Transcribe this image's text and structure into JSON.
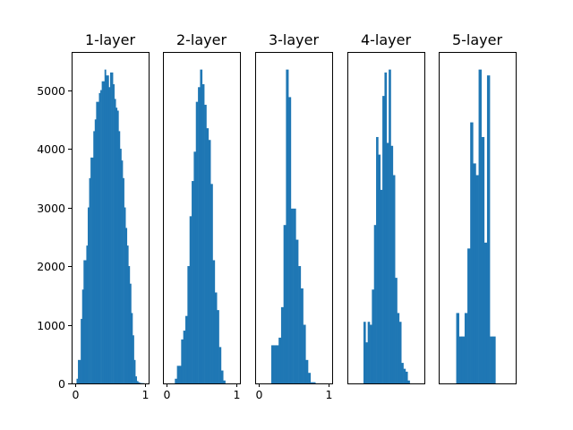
{
  "chart_data": [
    {
      "type": "bar",
      "title": "1-layer",
      "xlabel": "",
      "ylabel": "",
      "xlim": [
        -0.05,
        1.05
      ],
      "ylim": [
        0,
        5650
      ],
      "xticks": [
        "0",
        "1"
      ],
      "yticks": [
        "0",
        "1000",
        "2000",
        "3000",
        "4000",
        "5000"
      ],
      "color": "#1f77b4",
      "grid": false,
      "bins": [
        [
          0.02,
          0.04
        ],
        [
          0.04,
          0.06
        ],
        [
          0.06,
          0.08
        ],
        [
          0.08,
          0.1
        ],
        [
          0.1,
          0.12
        ],
        [
          0.12,
          0.14
        ],
        [
          0.14,
          0.16
        ],
        [
          0.16,
          0.18
        ],
        [
          0.18,
          0.2
        ],
        [
          0.2,
          0.22
        ],
        [
          0.22,
          0.24
        ],
        [
          0.24,
          0.26
        ],
        [
          0.26,
          0.28
        ],
        [
          0.28,
          0.3
        ],
        [
          0.3,
          0.32
        ],
        [
          0.32,
          0.34
        ],
        [
          0.34,
          0.36
        ],
        [
          0.36,
          0.38
        ],
        [
          0.38,
          0.4
        ],
        [
          0.4,
          0.42
        ],
        [
          0.42,
          0.44
        ],
        [
          0.44,
          0.46
        ],
        [
          0.46,
          0.48
        ],
        [
          0.48,
          0.5
        ],
        [
          0.5,
          0.52
        ],
        [
          0.52,
          0.54
        ],
        [
          0.54,
          0.56
        ],
        [
          0.56,
          0.58
        ],
        [
          0.58,
          0.6
        ],
        [
          0.6,
          0.62
        ],
        [
          0.62,
          0.64
        ],
        [
          0.64,
          0.66
        ],
        [
          0.66,
          0.68
        ],
        [
          0.68,
          0.7
        ],
        [
          0.7,
          0.72
        ],
        [
          0.72,
          0.74
        ],
        [
          0.74,
          0.76
        ],
        [
          0.76,
          0.78
        ],
        [
          0.78,
          0.8
        ],
        [
          0.8,
          0.82
        ],
        [
          0.82,
          0.84
        ],
        [
          0.84,
          0.86
        ],
        [
          0.86,
          0.88
        ],
        [
          0.88,
          0.9
        ],
        [
          0.9,
          0.92
        ],
        [
          0.92,
          0.94
        ],
        [
          0.94,
          0.96
        ],
        [
          0.96,
          0.98
        ]
      ],
      "counts": [
        80,
        400,
        400,
        1100,
        1600,
        2100,
        2100,
        2350,
        3000,
        3500,
        3850,
        3850,
        4300,
        4500,
        4800,
        4800,
        4950,
        5000,
        5150,
        5150,
        5350,
        5250,
        5250,
        5050,
        5300,
        5300,
        5100,
        4850,
        4700,
        4650,
        4300,
        4000,
        3800,
        3500,
        3000,
        2650,
        2350,
        2000,
        1700,
        1200,
        820,
        400,
        120,
        40,
        20,
        10,
        5,
        5
      ]
    },
    {
      "type": "bar",
      "title": "2-layer",
      "xlabel": "",
      "ylabel": "",
      "xlim": [
        -0.05,
        1.05
      ],
      "ylim": [
        0,
        5650
      ],
      "xticks": [
        "0",
        "1"
      ],
      "yticks": [],
      "color": "#1f77b4",
      "grid": false,
      "bins": [
        [
          0.12,
          0.15
        ],
        [
          0.15,
          0.18
        ],
        [
          0.18,
          0.21
        ],
        [
          0.21,
          0.24
        ],
        [
          0.24,
          0.27
        ],
        [
          0.27,
          0.3
        ],
        [
          0.3,
          0.33
        ],
        [
          0.33,
          0.36
        ],
        [
          0.36,
          0.39
        ],
        [
          0.39,
          0.42
        ],
        [
          0.42,
          0.45
        ],
        [
          0.45,
          0.48
        ],
        [
          0.48,
          0.51
        ],
        [
          0.51,
          0.54
        ],
        [
          0.54,
          0.57
        ],
        [
          0.57,
          0.6
        ],
        [
          0.6,
          0.63
        ],
        [
          0.63,
          0.66
        ],
        [
          0.66,
          0.69
        ],
        [
          0.69,
          0.72
        ],
        [
          0.72,
          0.75
        ],
        [
          0.75,
          0.78
        ],
        [
          0.78,
          0.81
        ],
        [
          0.81,
          0.84
        ]
      ],
      "counts": [
        80,
        300,
        300,
        750,
        900,
        1150,
        2000,
        2850,
        3450,
        3950,
        4800,
        5050,
        5350,
        5100,
        4750,
        4350,
        4150,
        3400,
        2100,
        1550,
        1250,
        620,
        220,
        50
      ]
    },
    {
      "type": "bar",
      "title": "3-layer",
      "xlabel": "",
      "ylabel": "",
      "xlim": [
        -0.05,
        1.05
      ],
      "ylim": [
        0,
        5650
      ],
      "xticks": [
        "0",
        "1"
      ],
      "yticks": [],
      "color": "#1f77b4",
      "grid": false,
      "bins": [
        [
          0.18,
          0.215
        ],
        [
          0.215,
          0.25
        ],
        [
          0.25,
          0.285
        ],
        [
          0.285,
          0.32
        ],
        [
          0.32,
          0.355
        ],
        [
          0.355,
          0.39
        ],
        [
          0.39,
          0.425
        ],
        [
          0.425,
          0.46
        ],
        [
          0.46,
          0.495
        ],
        [
          0.495,
          0.53
        ],
        [
          0.53,
          0.565
        ],
        [
          0.565,
          0.6
        ],
        [
          0.6,
          0.635
        ],
        [
          0.635,
          0.67
        ],
        [
          0.67,
          0.705
        ],
        [
          0.705,
          0.74
        ],
        [
          0.74,
          0.775
        ],
        [
          0.775,
          0.81
        ]
      ],
      "counts": [
        650,
        650,
        650,
        780,
        1300,
        2700,
        5350,
        4880,
        2980,
        2980,
        2450,
        2000,
        1620,
        1000,
        400,
        180,
        20,
        20
      ]
    },
    {
      "type": "bar",
      "title": "4-layer",
      "xlabel": "",
      "ylabel": "",
      "xlim": [
        -0.05,
        1.05
      ],
      "ylim": [
        0,
        5650
      ],
      "xticks": [],
      "yticks": [],
      "color": "#1f77b4",
      "grid": false,
      "bins": [
        [
          0.18,
          0.21
        ],
        [
          0.21,
          0.24
        ],
        [
          0.24,
          0.27
        ],
        [
          0.27,
          0.3
        ],
        [
          0.3,
          0.33
        ],
        [
          0.33,
          0.36
        ],
        [
          0.36,
          0.39
        ],
        [
          0.39,
          0.42
        ],
        [
          0.42,
          0.45
        ],
        [
          0.45,
          0.48
        ],
        [
          0.48,
          0.51
        ],
        [
          0.51,
          0.54
        ],
        [
          0.54,
          0.57
        ],
        [
          0.57,
          0.6
        ],
        [
          0.6,
          0.63
        ],
        [
          0.63,
          0.66
        ],
        [
          0.66,
          0.69
        ],
        [
          0.69,
          0.72
        ],
        [
          0.72,
          0.75
        ],
        [
          0.75,
          0.78
        ],
        [
          0.78,
          0.81
        ],
        [
          0.81,
          0.84
        ]
      ],
      "counts": [
        1050,
        700,
        1050,
        1000,
        1600,
        2700,
        4200,
        3900,
        3300,
        4900,
        5300,
        4100,
        5350,
        4050,
        3550,
        1800,
        1200,
        1050,
        350,
        250,
        200,
        50
      ]
    },
    {
      "type": "bar",
      "title": "5-layer",
      "xlabel": "",
      "ylabel": "",
      "xlim": [
        -0.05,
        1.05
      ],
      "ylim": [
        0,
        5650
      ],
      "xticks": [],
      "yticks": [],
      "color": "#1f77b4",
      "grid": false,
      "bins": [
        [
          0.2,
          0.24
        ],
        [
          0.24,
          0.28
        ],
        [
          0.28,
          0.32
        ],
        [
          0.32,
          0.36
        ],
        [
          0.36,
          0.4
        ],
        [
          0.4,
          0.44
        ],
        [
          0.44,
          0.48
        ],
        [
          0.48,
          0.52
        ],
        [
          0.52,
          0.56
        ],
        [
          0.56,
          0.6
        ],
        [
          0.6,
          0.64
        ],
        [
          0.64,
          0.68
        ],
        [
          0.68,
          0.72
        ],
        [
          0.72,
          0.76
        ]
      ],
      "counts": [
        1200,
        800,
        800,
        1200,
        2300,
        4450,
        3750,
        3550,
        5350,
        4200,
        2400,
        5250,
        800,
        800
      ]
    }
  ]
}
